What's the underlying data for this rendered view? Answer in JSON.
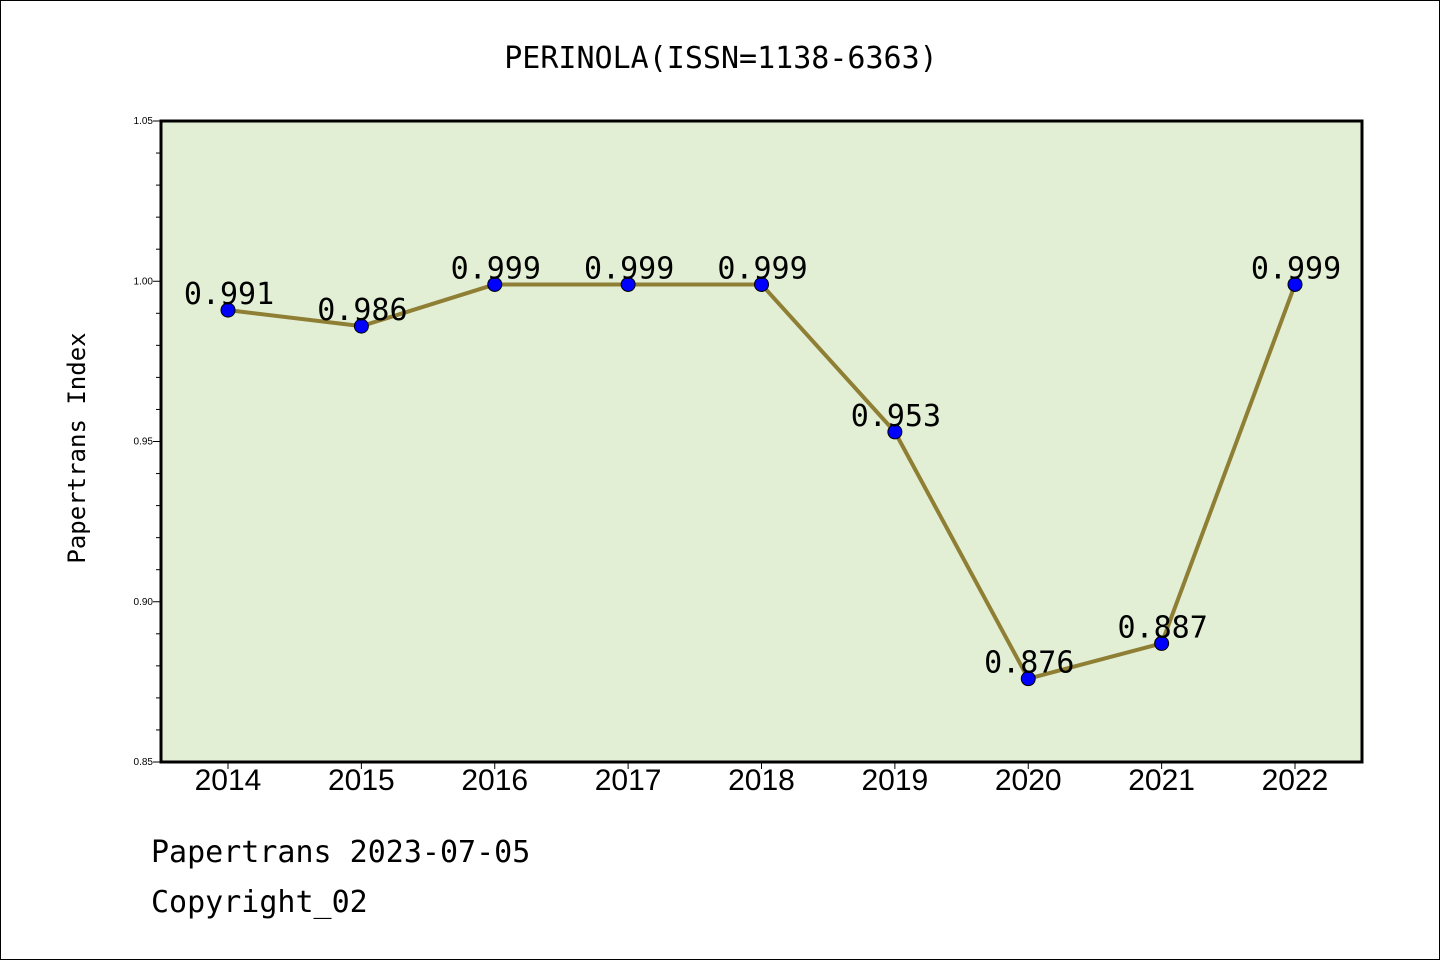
{
  "chart_data": {
    "type": "line",
    "title": "PERINOLA(ISSN=1138-6363)",
    "xlabel": "",
    "ylabel": "Papertrans Index",
    "categories": [
      "2014",
      "2015",
      "2016",
      "2017",
      "2018",
      "2019",
      "2020",
      "2021",
      "2022"
    ],
    "series": [
      {
        "values": [
          0.991,
          0.986,
          0.999,
          0.999,
          0.999,
          0.953,
          0.876,
          0.887,
          0.999
        ]
      }
    ],
    "data_labels": [
      "0.991",
      "0.986",
      "0.999",
      "0.999",
      "0.999",
      "0.953",
      "0.876",
      "0.887",
      "0.999"
    ],
    "ylim": [
      0.85,
      1.05
    ],
    "yticks": [
      "0.85",
      "0.90",
      "0.95",
      "1.00",
      "1.05"
    ],
    "grid": false,
    "colors": {
      "plot_background": "#e2efd5",
      "line": "#8f7f35",
      "marker": "#0000ff"
    }
  },
  "footer": {
    "source": "Papertrans 2023-07-05",
    "copyright": "Copyright_02"
  }
}
